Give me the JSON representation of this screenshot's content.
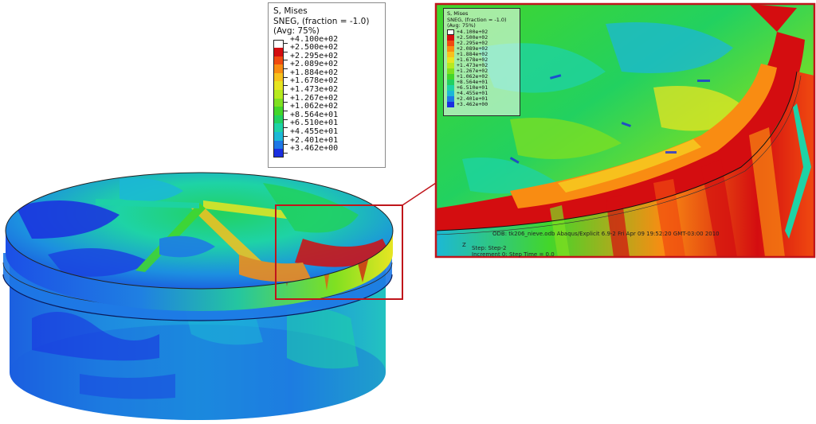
{
  "figure": {
    "description_colors": {
      "frame": "#c0151b",
      "legend_border": "#8a8a8a"
    }
  },
  "legend": {
    "line1": "S, Mises",
    "line2": "SNEG, (fraction = -1.0)",
    "line3": "(Avg: 75%)",
    "levels": [
      {
        "value": "+4.100e+02",
        "color": "#ffffff"
      },
      {
        "value": "+2.500e+02",
        "color": "#d40d10"
      },
      {
        "value": "+2.295e+02",
        "color": "#f04a10"
      },
      {
        "value": "+2.089e+02",
        "color": "#f98c12"
      },
      {
        "value": "+1.884e+02",
        "color": "#f7c11d"
      },
      {
        "value": "+1.678e+02",
        "color": "#e7e522"
      },
      {
        "value": "+1.473e+02",
        "color": "#b6ea1f"
      },
      {
        "value": "+1.267e+02",
        "color": "#7fe021"
      },
      {
        "value": "+1.062e+02",
        "color": "#43d62a"
      },
      {
        "value": "+8.564e+01",
        "color": "#22d160"
      },
      {
        "value": "+6.510e+01",
        "color": "#1ed3a6"
      },
      {
        "value": "+4.455e+01",
        "color": "#1cb8d6"
      },
      {
        "value": "+2.401e+01",
        "color": "#1e78e6"
      },
      {
        "value": "+3.462e+00",
        "color": "#1a2fe0"
      }
    ]
  },
  "inset": {
    "legend_line1": "S, Mises",
    "legend_line2": "SNEG, (fraction = -1.0)",
    "legend_line3": "(Avg: 75%)",
    "status": "ODB: tk206_nieve.odb    Abaqus/Explicit 6.9-2    Fri Apr 09 19:52:20 GMT-03:00 2010",
    "step_line1": "Step: Step-2",
    "step_line2": "Increment      0: Step Time = 0.0",
    "axis_label": "Z"
  }
}
